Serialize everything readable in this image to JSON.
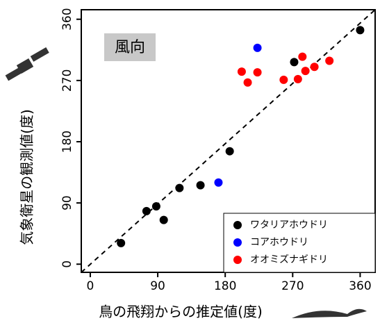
{
  "chart_data": {
    "type": "scatter",
    "annotation": "風向",
    "x_label": "鳥の飛翔からの推定値(度)",
    "y_label": "気象衛星の観測値(度)",
    "xlim": [
      -12,
      380
    ],
    "ylim": [
      -12,
      374
    ],
    "xticks": [
      0,
      90,
      180,
      270,
      360
    ],
    "yticks": [
      0,
      90,
      180,
      270,
      360
    ],
    "legend": "bottom-right",
    "series": [
      {
        "name": "ワタリアホウドリ",
        "color": "#000000",
        "x": [
          41,
          75,
          88,
          98,
          119,
          147,
          186,
          272,
          360
        ],
        "values": [
          31,
          78,
          85,
          65,
          112,
          116,
          166,
          297,
          344
        ]
      },
      {
        "name": "コアホウドリ",
        "color": "#0000ff",
        "x": [
          171,
          223
        ],
        "values": [
          120,
          318
        ]
      },
      {
        "name": "オオミズナギドリ",
        "color": "#ff0000",
        "x": [
          202,
          210,
          223,
          258,
          277,
          283,
          287,
          299,
          319
        ],
        "values": [
          283,
          267,
          282,
          271,
          272,
          305,
          284,
          290,
          299
        ]
      }
    ]
  }
}
